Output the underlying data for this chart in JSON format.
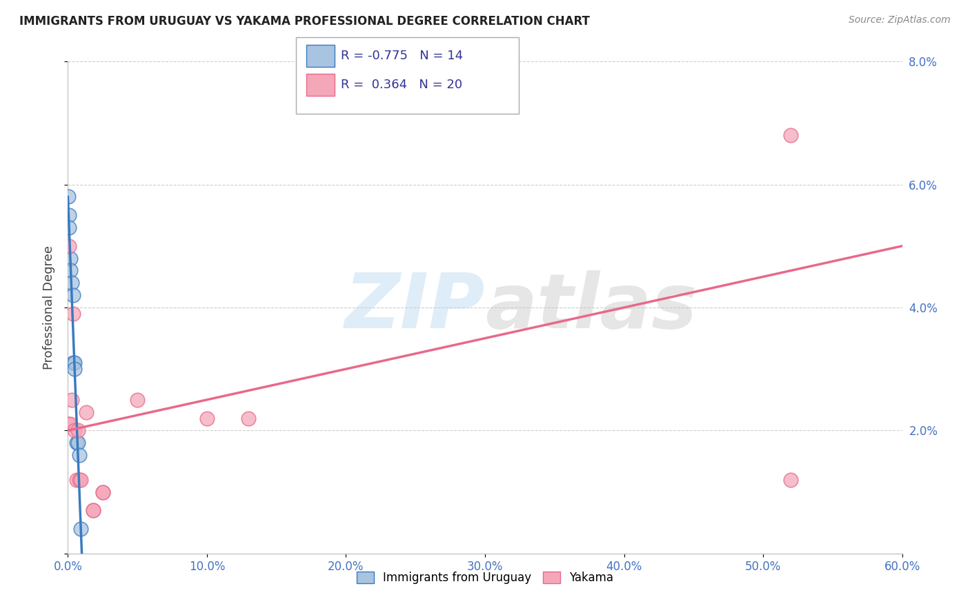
{
  "title": "IMMIGRANTS FROM URUGUAY VS YAKAMA PROFESSIONAL DEGREE CORRELATION CHART",
  "source": "Source: ZipAtlas.com",
  "ylabel": "Professional Degree",
  "xlim": [
    0,
    0.6
  ],
  "ylim": [
    0,
    0.08
  ],
  "xticks": [
    0.0,
    0.1,
    0.2,
    0.3,
    0.4,
    0.5,
    0.6
  ],
  "yticks": [
    0.0,
    0.02,
    0.04,
    0.06,
    0.08
  ],
  "ytick_labels": [
    "",
    "2.0%",
    "4.0%",
    "6.0%",
    "8.0%"
  ],
  "xtick_labels": [
    "0.0%",
    "10.0%",
    "20.0%",
    "30.0%",
    "40.0%",
    "50.0%",
    "60.0%"
  ],
  "blue_label": "Immigrants from Uruguay",
  "pink_label": "Yakama",
  "blue_R": -0.775,
  "blue_N": 14,
  "pink_R": 0.364,
  "pink_N": 20,
  "blue_color": "#a8c4e0",
  "pink_color": "#f4a7b9",
  "blue_line_color": "#3a7abf",
  "pink_line_color": "#e8698a",
  "blue_scatter_x": [
    0.0005,
    0.001,
    0.001,
    0.002,
    0.002,
    0.003,
    0.004,
    0.004,
    0.005,
    0.005,
    0.006,
    0.007,
    0.008,
    0.009
  ],
  "blue_scatter_y": [
    0.058,
    0.055,
    0.053,
    0.048,
    0.046,
    0.044,
    0.042,
    0.031,
    0.031,
    0.03,
    0.018,
    0.018,
    0.016,
    0.004
  ],
  "pink_scatter_x": [
    0.0005,
    0.001,
    0.002,
    0.003,
    0.004,
    0.005,
    0.006,
    0.007,
    0.008,
    0.009,
    0.013,
    0.018,
    0.018,
    0.025,
    0.025,
    0.05,
    0.1,
    0.13,
    0.52,
    0.52
  ],
  "pink_scatter_y": [
    0.021,
    0.05,
    0.021,
    0.025,
    0.039,
    0.02,
    0.012,
    0.02,
    0.012,
    0.012,
    0.023,
    0.007,
    0.007,
    0.01,
    0.01,
    0.025,
    0.022,
    0.022,
    0.068,
    0.012
  ],
  "blue_line_x0": 0.0,
  "blue_line_y0": 0.058,
  "blue_line_x1": 0.01,
  "blue_line_y1": 0.0,
  "pink_line_x0": 0.0,
  "pink_line_y0": 0.02,
  "pink_line_x1": 0.6,
  "pink_line_y1": 0.05,
  "watermark_zip": "ZIP",
  "watermark_atlas": "atlas",
  "background_color": "#ffffff",
  "grid_color": "#cccccc",
  "tick_color": "#4472c4",
  "title_color": "#222222",
  "source_color": "#888888"
}
